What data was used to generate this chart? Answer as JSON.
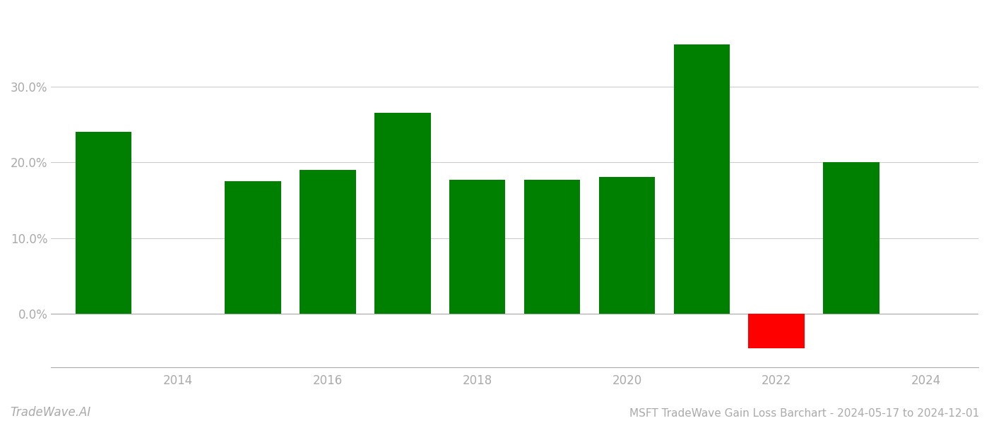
{
  "years": [
    2013,
    2015,
    2016,
    2017,
    2018,
    2019,
    2020,
    2021,
    2022,
    2023
  ],
  "values": [
    0.24,
    0.175,
    0.19,
    0.265,
    0.177,
    0.177,
    0.181,
    0.355,
    -0.045,
    0.2
  ],
  "bar_colors": [
    "#008000",
    "#008000",
    "#008000",
    "#008000",
    "#008000",
    "#008000",
    "#008000",
    "#008000",
    "#ff0000",
    "#008000"
  ],
  "title": "MSFT TradeWave Gain Loss Barchart - 2024-05-17 to 2024-12-01",
  "watermark": "TradeWave.AI",
  "background_color": "#ffffff",
  "grid_color": "#cccccc",
  "ytick_values": [
    0.0,
    0.1,
    0.2,
    0.3
  ],
  "ylim": [
    -0.07,
    0.4
  ],
  "xlim": [
    2012.3,
    2024.7
  ],
  "xtick_values": [
    2014,
    2016,
    2018,
    2020,
    2022,
    2024
  ],
  "bar_width": 0.75,
  "title_fontsize": 11,
  "watermark_fontsize": 12,
  "tick_label_color": "#aaaaaa",
  "spine_color": "#aaaaaa"
}
